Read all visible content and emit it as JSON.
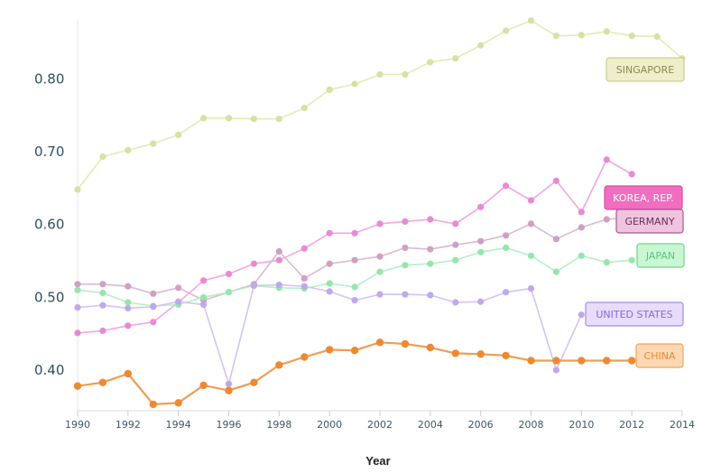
{
  "chart_data": {
    "type": "line",
    "xlabel": "Year",
    "ylabel": "",
    "title": "",
    "xlim": [
      1990,
      2014
    ],
    "ylim": [
      0.35,
      0.88
    ],
    "xticks": [
      1990,
      1992,
      1994,
      1996,
      1998,
      2000,
      2002,
      2004,
      2006,
      2008,
      2010,
      2012,
      2014
    ],
    "yticks": [
      0.4,
      0.5,
      0.6,
      0.7,
      0.8
    ],
    "ytick_labels": [
      "0.40",
      "0.50",
      "0.60",
      "0.70",
      "0.80"
    ],
    "grid": false,
    "series": [
      {
        "name": "SINGAPORE",
        "line_color": "#e6eab2",
        "marker_color": "#d9e0a3",
        "label_fill": "#eeeecb",
        "label_stroke": "#cbcf8a",
        "label_text": "#8a8a4e",
        "points": [
          [
            1990,
            0.648
          ],
          [
            1991,
            0.693
          ],
          [
            1992,
            0.702
          ],
          [
            1993,
            0.711
          ],
          [
            1994,
            0.723
          ],
          [
            1995,
            0.746
          ],
          [
            1996,
            0.746
          ],
          [
            1997,
            0.745
          ],
          [
            1998,
            0.745
          ],
          [
            1999,
            0.76
          ],
          [
            2000,
            0.785
          ],
          [
            2001,
            0.793
          ],
          [
            2002,
            0.806
          ],
          [
            2003,
            0.806
          ],
          [
            2004,
            0.823
          ],
          [
            2005,
            0.828
          ],
          [
            2006,
            0.846
          ],
          [
            2007,
            0.866
          ],
          [
            2008,
            0.88
          ],
          [
            2009,
            0.859
          ],
          [
            2010,
            0.86
          ],
          [
            2011,
            0.865
          ],
          [
            2012,
            0.859
          ],
          [
            2013,
            0.858
          ],
          [
            2014,
            0.828
          ]
        ]
      },
      {
        "name": "KOREA, REP.",
        "line_color": "#f3a7df",
        "marker_color": "#e88ad3",
        "label_fill": "#f06dbf",
        "label_stroke": "#d84ea6",
        "label_text": "#ffffff",
        "points": [
          [
            1990,
            0.451
          ],
          [
            1991,
            0.454
          ],
          [
            1992,
            0.461
          ],
          [
            1993,
            0.466
          ],
          [
            1994,
            0.493
          ],
          [
            1995,
            0.523
          ],
          [
            1996,
            0.532
          ],
          [
            1997,
            0.546
          ],
          [
            1998,
            0.551
          ],
          [
            1999,
            0.567
          ],
          [
            2000,
            0.588
          ],
          [
            2001,
            0.588
          ],
          [
            2002,
            0.601
          ],
          [
            2003,
            0.604
          ],
          [
            2004,
            0.607
          ],
          [
            2005,
            0.601
          ],
          [
            2006,
            0.624
          ],
          [
            2007,
            0.653
          ],
          [
            2008,
            0.633
          ],
          [
            2009,
            0.66
          ],
          [
            2010,
            0.617
          ],
          [
            2011,
            0.689
          ],
          [
            2012,
            0.669
          ]
        ]
      },
      {
        "name": "GERMANY",
        "line_color": "#dcb9d3",
        "marker_color": "#cfa0c4",
        "label_fill": "#eec4df",
        "label_stroke": "#a95b8d",
        "label_text": "#6b2f57",
        "points": [
          [
            1990,
            0.518
          ],
          [
            1991,
            0.518
          ],
          [
            1992,
            0.515
          ],
          [
            1993,
            0.505
          ],
          [
            1994,
            0.513
          ],
          [
            1995,
            0.496
          ],
          [
            1996,
            0.507
          ],
          [
            1997,
            0.518
          ],
          [
            1998,
            0.563
          ],
          [
            1999,
            0.526
          ],
          [
            2000,
            0.546
          ],
          [
            2001,
            0.551
          ],
          [
            2002,
            0.556
          ],
          [
            2003,
            0.568
          ],
          [
            2004,
            0.566
          ],
          [
            2005,
            0.572
          ],
          [
            2006,
            0.577
          ],
          [
            2007,
            0.585
          ],
          [
            2008,
            0.601
          ],
          [
            2009,
            0.58
          ],
          [
            2010,
            0.596
          ],
          [
            2011,
            0.607
          ],
          [
            2012,
            0.61
          ]
        ]
      },
      {
        "name": "JAPAN",
        "line_color": "#b5f0c4",
        "marker_color": "#96e6ab",
        "label_fill": "#c9f7d3",
        "label_stroke": "#72d68c",
        "label_text": "#5fc27a",
        "points": [
          [
            1990,
            0.51
          ],
          [
            1991,
            0.506
          ],
          [
            1992,
            0.493
          ],
          [
            1993,
            0.488
          ],
          [
            1994,
            0.49
          ],
          [
            1995,
            0.5
          ],
          [
            1996,
            0.507
          ],
          [
            1997,
            0.516
          ],
          [
            1998,
            0.513
          ],
          [
            1999,
            0.512
          ],
          [
            2000,
            0.519
          ],
          [
            2001,
            0.514
          ],
          [
            2002,
            0.535
          ],
          [
            2003,
            0.544
          ],
          [
            2004,
            0.546
          ],
          [
            2005,
            0.551
          ],
          [
            2006,
            0.562
          ],
          [
            2007,
            0.568
          ],
          [
            2008,
            0.557
          ],
          [
            2009,
            0.535
          ],
          [
            2010,
            0.557
          ],
          [
            2011,
            0.548
          ],
          [
            2012,
            0.551
          ]
        ]
      },
      {
        "name": "UNITED STATES",
        "line_color": "#d3c4f3",
        "marker_color": "#bfa8ee",
        "label_fill": "#e7dcfa",
        "label_stroke": "#a98be3",
        "label_text": "#8b68d6",
        "points": [
          [
            1990,
            0.486
          ],
          [
            1991,
            0.489
          ],
          [
            1992,
            0.485
          ],
          [
            1993,
            0.487
          ],
          [
            1994,
            0.494
          ],
          [
            1995,
            0.49
          ],
          [
            1996,
            0.381
          ],
          [
            1997,
            0.516
          ],
          [
            1998,
            0.517
          ],
          [
            1999,
            0.515
          ],
          [
            2000,
            0.508
          ],
          [
            2001,
            0.496
          ],
          [
            2002,
            0.504
          ],
          [
            2003,
            0.504
          ],
          [
            2004,
            0.503
          ],
          [
            2005,
            0.493
          ],
          [
            2006,
            0.494
          ],
          [
            2007,
            0.507
          ],
          [
            2008,
            0.512
          ],
          [
            2009,
            0.4
          ],
          [
            2010,
            0.476
          ]
        ]
      },
      {
        "name": "CHINA",
        "line_color": "#ef9e4f",
        "marker_color": "#ec8a33",
        "label_fill": "#fcd8b4",
        "label_stroke": "#f1a55a",
        "label_text": "#ec8a33",
        "points": [
          [
            1990,
            0.378
          ],
          [
            1991,
            0.383
          ],
          [
            1992,
            0.395
          ],
          [
            1993,
            0.353
          ],
          [
            1994,
            0.355
          ],
          [
            1995,
            0.379
          ],
          [
            1996,
            0.372
          ],
          [
            1997,
            0.383
          ],
          [
            1998,
            0.407
          ],
          [
            1999,
            0.418
          ],
          [
            2000,
            0.428
          ],
          [
            2001,
            0.427
          ],
          [
            2002,
            0.438
          ],
          [
            2003,
            0.436
          ],
          [
            2004,
            0.431
          ],
          [
            2005,
            0.423
          ],
          [
            2006,
            0.422
          ],
          [
            2007,
            0.42
          ],
          [
            2008,
            0.413
          ],
          [
            2009,
            0.413
          ],
          [
            2010,
            0.413
          ],
          [
            2011,
            0.413
          ],
          [
            2012,
            0.413
          ]
        ]
      }
    ]
  }
}
